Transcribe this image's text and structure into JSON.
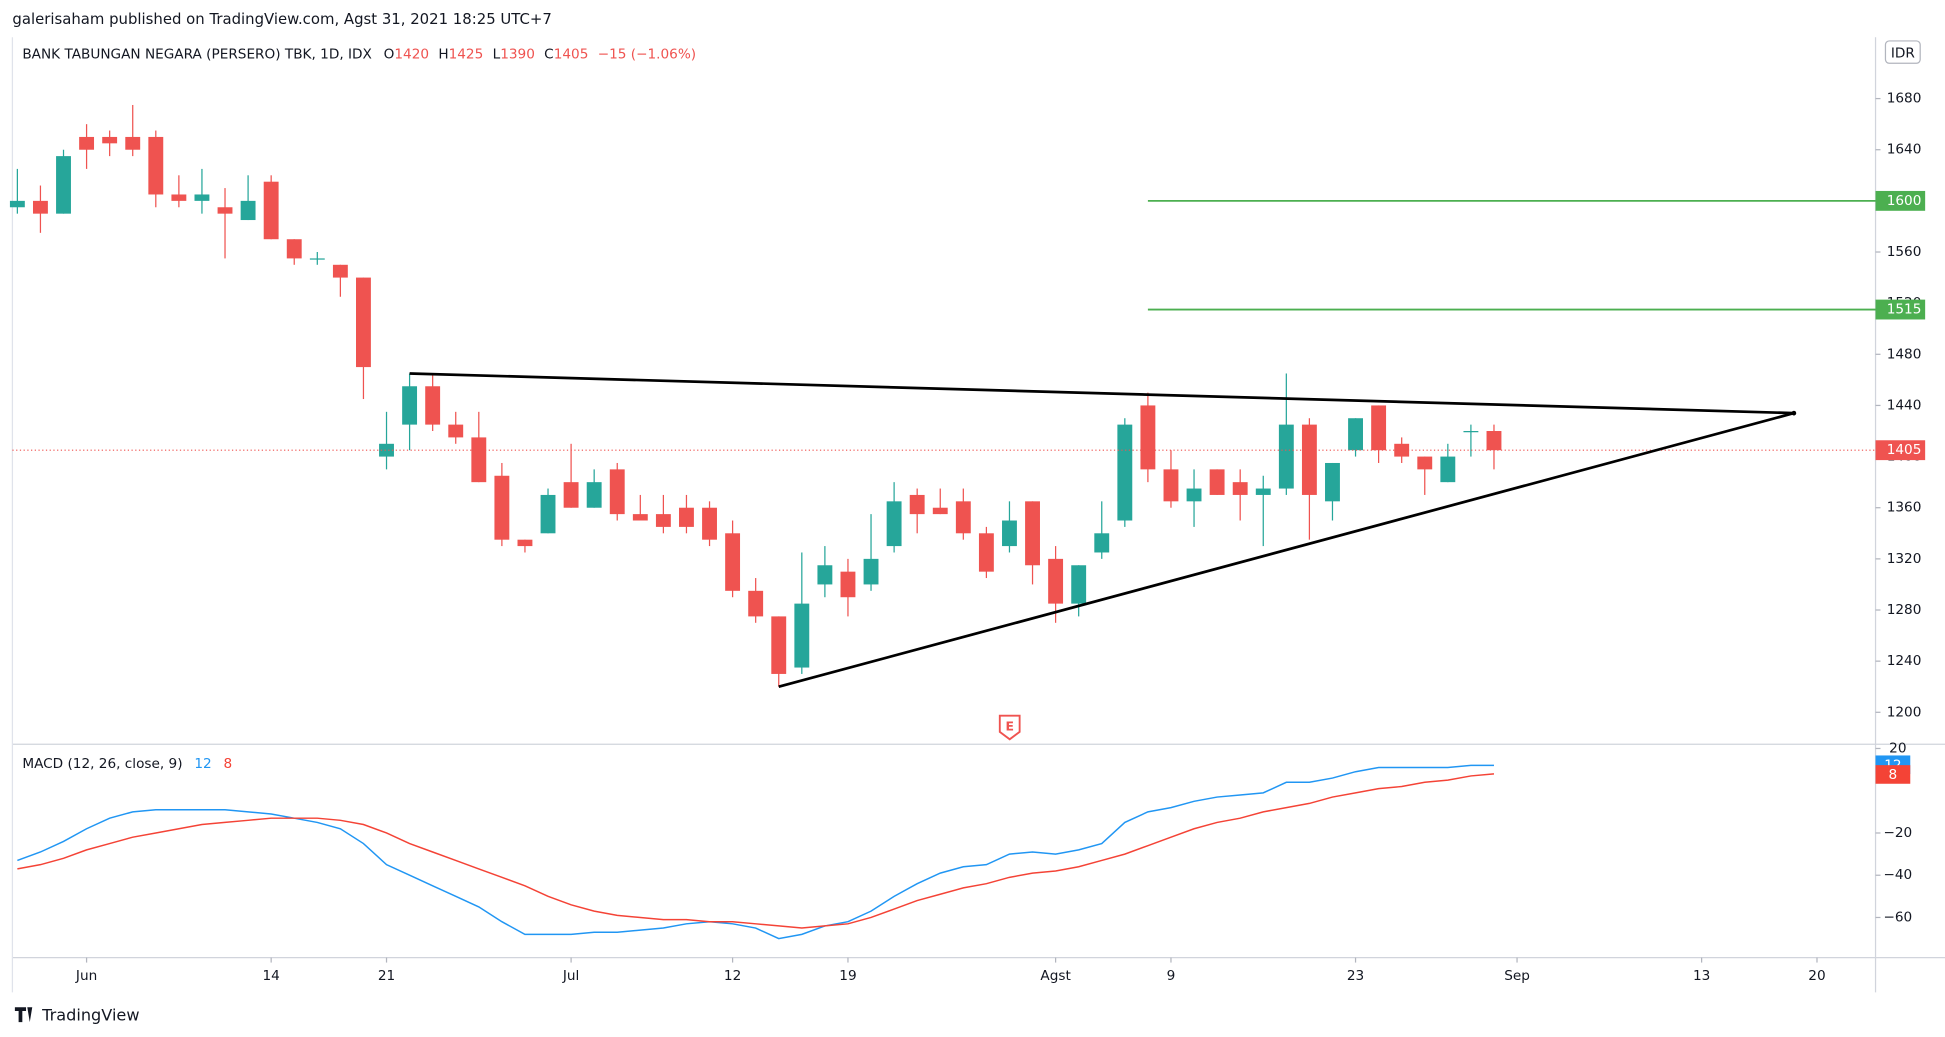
{
  "header": "galerisaham published on TradingView.com, Agst 31, 2021 18:25 UTC+7",
  "footer": "TradingView",
  "chart_data": {
    "type": "candlestick",
    "title": "BANK TABUNGAN NEGARA (PERSERO) TBK, 1D, IDX",
    "ohlc_letters": [
      "O",
      "H",
      "L",
      "C"
    ],
    "change_label": "−15 (−1.06%)",
    "currency": "IDR",
    "earnings_marker": "E",
    "up_color": "#26a69a",
    "down_color": "#ef5350",
    "categories": [
      null,
      null,
      null,
      "Jun",
      null,
      null,
      null,
      null,
      null,
      null,
      null,
      "14",
      null,
      null,
      null,
      null,
      "21",
      null,
      null,
      null,
      null,
      null,
      null,
      null,
      "Jul",
      null,
      null,
      null,
      null,
      null,
      null,
      "12",
      null,
      null,
      null,
      null,
      "19",
      null,
      null,
      null,
      null,
      null,
      null,
      null,
      null,
      "Agst",
      null,
      null,
      null,
      null,
      "9",
      null,
      null,
      null,
      null,
      null,
      null,
      null,
      "23",
      null,
      null,
      null,
      null,
      null,
      null,
      "Sep",
      null,
      null,
      null,
      null,
      null,
      null,
      null,
      "13",
      null,
      null,
      null,
      null,
      "20"
    ],
    "open": [
      1595,
      1600,
      1590,
      1650,
      1650,
      1650,
      1650,
      1605,
      1600,
      1595,
      1585,
      1615,
      1570,
      1555,
      1550,
      1540,
      1400,
      1425,
      1455,
      1425,
      1415,
      1385,
      1335,
      1340,
      1380,
      1360,
      1390,
      1355,
      1355,
      1360,
      1360,
      1340,
      1295,
      1275,
      1235,
      1300,
      1310,
      1300,
      1330,
      1370,
      1360,
      1365,
      1340,
      1330,
      1365,
      1320,
      1285,
      1325,
      1350,
      1440,
      1390,
      1365,
      1390,
      1380,
      1370,
      1375,
      1425,
      1365,
      1405,
      1440,
      1410,
      1400,
      1380,
      1420,
      1420,
      null,
      null,
      null,
      null,
      null,
      null,
      null,
      null,
      null,
      null,
      null,
      null,
      null,
      null
    ],
    "high": [
      1625,
      1612,
      1640,
      1660,
      1655,
      1675,
      1655,
      1620,
      1625,
      1610,
      1620,
      1620,
      1570,
      1560,
      1550,
      1540,
      1435,
      1465,
      1465,
      1435,
      1435,
      1395,
      1335,
      1375,
      1410,
      1390,
      1395,
      1370,
      1370,
      1370,
      1365,
      1350,
      1305,
      1275,
      1325,
      1330,
      1320,
      1355,
      1380,
      1375,
      1375,
      1375,
      1345,
      1365,
      1365,
      1330,
      1315,
      1365,
      1430,
      1450,
      1405,
      1390,
      1390,
      1390,
      1385,
      1465,
      1430,
      1395,
      1430,
      1440,
      1415,
      1400,
      1410,
      1425,
      1425,
      null,
      null,
      null,
      null,
      null,
      null,
      null,
      null,
      null,
      null,
      null,
      null,
      null,
      null
    ],
    "low": [
      1590,
      1575,
      1590,
      1625,
      1635,
      1635,
      1595,
      1595,
      1590,
      1555,
      1585,
      1570,
      1550,
      1550,
      1525,
      1445,
      1390,
      1405,
      1420,
      1410,
      1380,
      1330,
      1325,
      1340,
      1360,
      1360,
      1350,
      1350,
      1340,
      1340,
      1330,
      1290,
      1270,
      1220,
      1230,
      1290,
      1275,
      1295,
      1325,
      1340,
      1355,
      1335,
      1305,
      1325,
      1300,
      1270,
      1275,
      1320,
      1345,
      1380,
      1360,
      1345,
      1370,
      1350,
      1330,
      1370,
      1335,
      1350,
      1400,
      1395,
      1395,
      1370,
      1380,
      1400,
      1390,
      null,
      null,
      null,
      null,
      null,
      null,
      null,
      null,
      null,
      null,
      null,
      null,
      null,
      null
    ],
    "close": [
      1600,
      1590,
      1635,
      1640,
      1645,
      1640,
      1605,
      1600,
      1605,
      1590,
      1600,
      1570,
      1555,
      1555,
      1540,
      1470,
      1410,
      1455,
      1425,
      1415,
      1380,
      1335,
      1330,
      1370,
      1360,
      1380,
      1355,
      1350,
      1345,
      1345,
      1335,
      1295,
      1275,
      1230,
      1285,
      1315,
      1290,
      1320,
      1365,
      1355,
      1355,
      1340,
      1310,
      1350,
      1315,
      1285,
      1315,
      1340,
      1425,
      1390,
      1365,
      1375,
      1370,
      1370,
      1375,
      1425,
      1370,
      1395,
      1430,
      1405,
      1400,
      1390,
      1400,
      1420,
      1405,
      null,
      null,
      null,
      null,
      null,
      null,
      null,
      null,
      null,
      null,
      null,
      null,
      null,
      null
    ],
    "ylim": [
      1175,
      1728
    ],
    "yticks": [
      1200,
      1240,
      1280,
      1320,
      1360,
      1400,
      1440,
      1480,
      1520,
      1560,
      1600,
      1640,
      1680
    ],
    "levels": [
      {
        "value": 1600,
        "color": "#4caf50"
      },
      {
        "value": 1515,
        "color": "#4caf50"
      }
    ],
    "trendlines": [
      {
        "x": [
          17,
          77
        ],
        "y": [
          1465,
          1434
        ],
        "color": "#000000"
      },
      {
        "x": [
          33,
          77
        ],
        "y": [
          1220,
          1434
        ],
        "color": "#000000"
      }
    ],
    "macd": {
      "title": "MACD (12, 26, close, 9)",
      "ylim": [
        -79,
        22
      ],
      "yticks": [
        20,
        {
          "value": -20,
          "label": "−20"
        },
        {
          "value": -40,
          "label": "−40"
        },
        {
          "value": -60,
          "label": "−60"
        }
      ],
      "series": [
        {
          "color": "#2196f3",
          "values": [
            -33,
            -29,
            -24,
            -18,
            -13,
            -10,
            -9,
            -9,
            -9,
            -9,
            -10,
            -11,
            -13,
            -15,
            -18,
            -25,
            -35,
            -40,
            -45,
            -50,
            -55,
            -62,
            -68,
            -68,
            -68,
            -67,
            -67,
            -66,
            -65,
            -63,
            -62,
            -63,
            -65,
            -70,
            -68,
            -64,
            -62,
            -57,
            -50,
            -44,
            -39,
            -36,
            -35,
            -30,
            -29,
            -30,
            -28,
            -25,
            -15,
            -10,
            -8,
            -5,
            -3,
            -2,
            -1,
            4,
            4,
            6,
            9,
            11,
            11,
            11,
            11,
            12,
            12,
            null,
            null,
            null,
            null,
            null,
            null,
            null,
            null,
            null,
            null,
            null,
            null,
            null,
            null
          ]
        },
        {
          "color": "#f44336",
          "values": [
            -37,
            -35,
            -32,
            -28,
            -25,
            -22,
            -20,
            -18,
            -16,
            -15,
            -14,
            -13,
            -13,
            -13,
            -14,
            -16,
            -20,
            -25,
            -29,
            -33,
            -37,
            -41,
            -45,
            -50,
            -54,
            -57,
            -59,
            -60,
            -61,
            -61,
            -62,
            -62,
            -63,
            -64,
            -65,
            -64,
            -63,
            -60,
            -56,
            -52,
            -49,
            -46,
            -44,
            -41,
            -39,
            -38,
            -36,
            -33,
            -30,
            -26,
            -22,
            -18,
            -15,
            -13,
            -10,
            -8,
            -6,
            -3,
            -1,
            1,
            2,
            4,
            5,
            7,
            8,
            null,
            null,
            null,
            null,
            null,
            null,
            null,
            null,
            null,
            null,
            null,
            null,
            null,
            null
          ]
        }
      ]
    }
  }
}
